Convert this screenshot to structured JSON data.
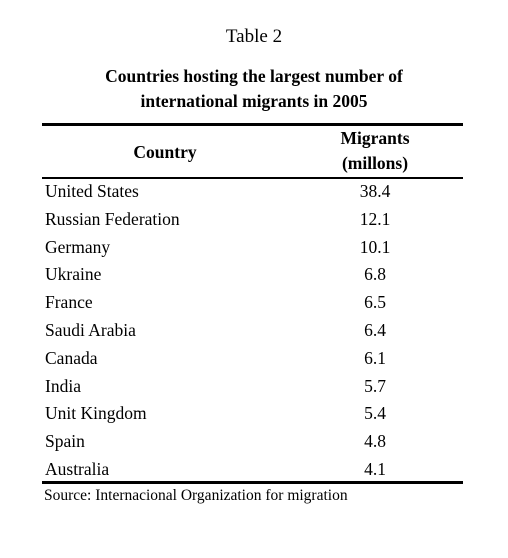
{
  "header": {
    "title": "Table 2",
    "subtitle": "Countries hosting the largest number of international migrants in 2005"
  },
  "table": {
    "columns": [
      "Country",
      "Migrants (millons)"
    ],
    "rows": [
      [
        "United States",
        "38.4"
      ],
      [
        "Russian Federation",
        "12.1"
      ],
      [
        "Germany",
        "10.1"
      ],
      [
        "Ukraine",
        "6.8"
      ],
      [
        "France",
        "6.5"
      ],
      [
        "Saudi Arabia",
        "6.4"
      ],
      [
        "Canada",
        "6.1"
      ],
      [
        "India",
        "5.7"
      ],
      [
        "Unit Kingdom",
        "5.4"
      ],
      [
        "Spain",
        "4.8"
      ],
      [
        "Australia",
        "4.1"
      ]
    ]
  },
  "footer": {
    "source": "Source: Internacional Organization for migration"
  }
}
